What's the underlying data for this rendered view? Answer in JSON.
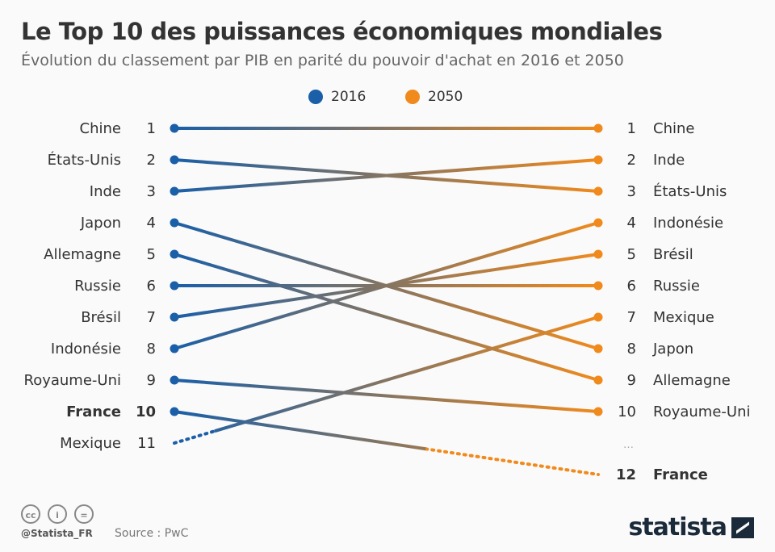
{
  "title": "Le Top 10 des puissances économiques mondiales",
  "subtitle": "Évolution du classement par PIB en parité du pouvoir d'achat en 2016 et 2050",
  "colors": {
    "y2016": "#1a5fa8",
    "y2050": "#f08a1c"
  },
  "chart_data": {
    "type": "slope",
    "title": "Le Top 10 des puissances économiques mondiales",
    "series": [
      {
        "name": "2016"
      },
      {
        "name": "2050"
      }
    ],
    "left": [
      {
        "country": "Chine",
        "rank": "1"
      },
      {
        "country": "États-Unis",
        "rank": "2"
      },
      {
        "country": "Inde",
        "rank": "3"
      },
      {
        "country": "Japon",
        "rank": "4"
      },
      {
        "country": "Allemagne",
        "rank": "5"
      },
      {
        "country": "Russie",
        "rank": "6"
      },
      {
        "country": "Brésil",
        "rank": "7"
      },
      {
        "country": "Indonésie",
        "rank": "8"
      },
      {
        "country": "Royaume-Uni",
        "rank": "9"
      },
      {
        "country": "France",
        "rank": "10",
        "bold": true
      },
      {
        "country": "Mexique",
        "rank": "11"
      }
    ],
    "right": [
      {
        "country": "Chine",
        "rank": "1"
      },
      {
        "country": "Inde",
        "rank": "2"
      },
      {
        "country": "États-Unis",
        "rank": "3"
      },
      {
        "country": "Indonésie",
        "rank": "4"
      },
      {
        "country": "Brésil",
        "rank": "5"
      },
      {
        "country": "Russie",
        "rank": "6"
      },
      {
        "country": "Mexique",
        "rank": "7"
      },
      {
        "country": "Japon",
        "rank": "8"
      },
      {
        "country": "Allemagne",
        "rank": "9"
      },
      {
        "country": "Royaume-Uni",
        "rank": "10"
      },
      {
        "country": "…",
        "rank": ""
      },
      {
        "country": "France",
        "rank": "12",
        "bold": true
      }
    ],
    "links": [
      {
        "country": "Chine",
        "from": 1,
        "to": 1
      },
      {
        "country": "États-Unis",
        "from": 2,
        "to": 3
      },
      {
        "country": "Inde",
        "from": 3,
        "to": 2
      },
      {
        "country": "Japon",
        "from": 4,
        "to": 8
      },
      {
        "country": "Allemagne",
        "from": 5,
        "to": 9
      },
      {
        "country": "Russie",
        "from": 6,
        "to": 6
      },
      {
        "country": "Brésil",
        "from": 7,
        "to": 5
      },
      {
        "country": "Indonésie",
        "from": 8,
        "to": 4
      },
      {
        "country": "Royaume-Uni",
        "from": 9,
        "to": 10
      },
      {
        "country": "France",
        "from": 10,
        "to": 12,
        "dotted_end": true
      },
      {
        "country": "Mexique",
        "from": 11,
        "to": 7,
        "dotted_start": true
      }
    ]
  },
  "footer": {
    "handle": "@Statista_FR",
    "source": "Source : PwC",
    "logo": "statista",
    "cc": [
      "cc",
      "i",
      "="
    ]
  }
}
